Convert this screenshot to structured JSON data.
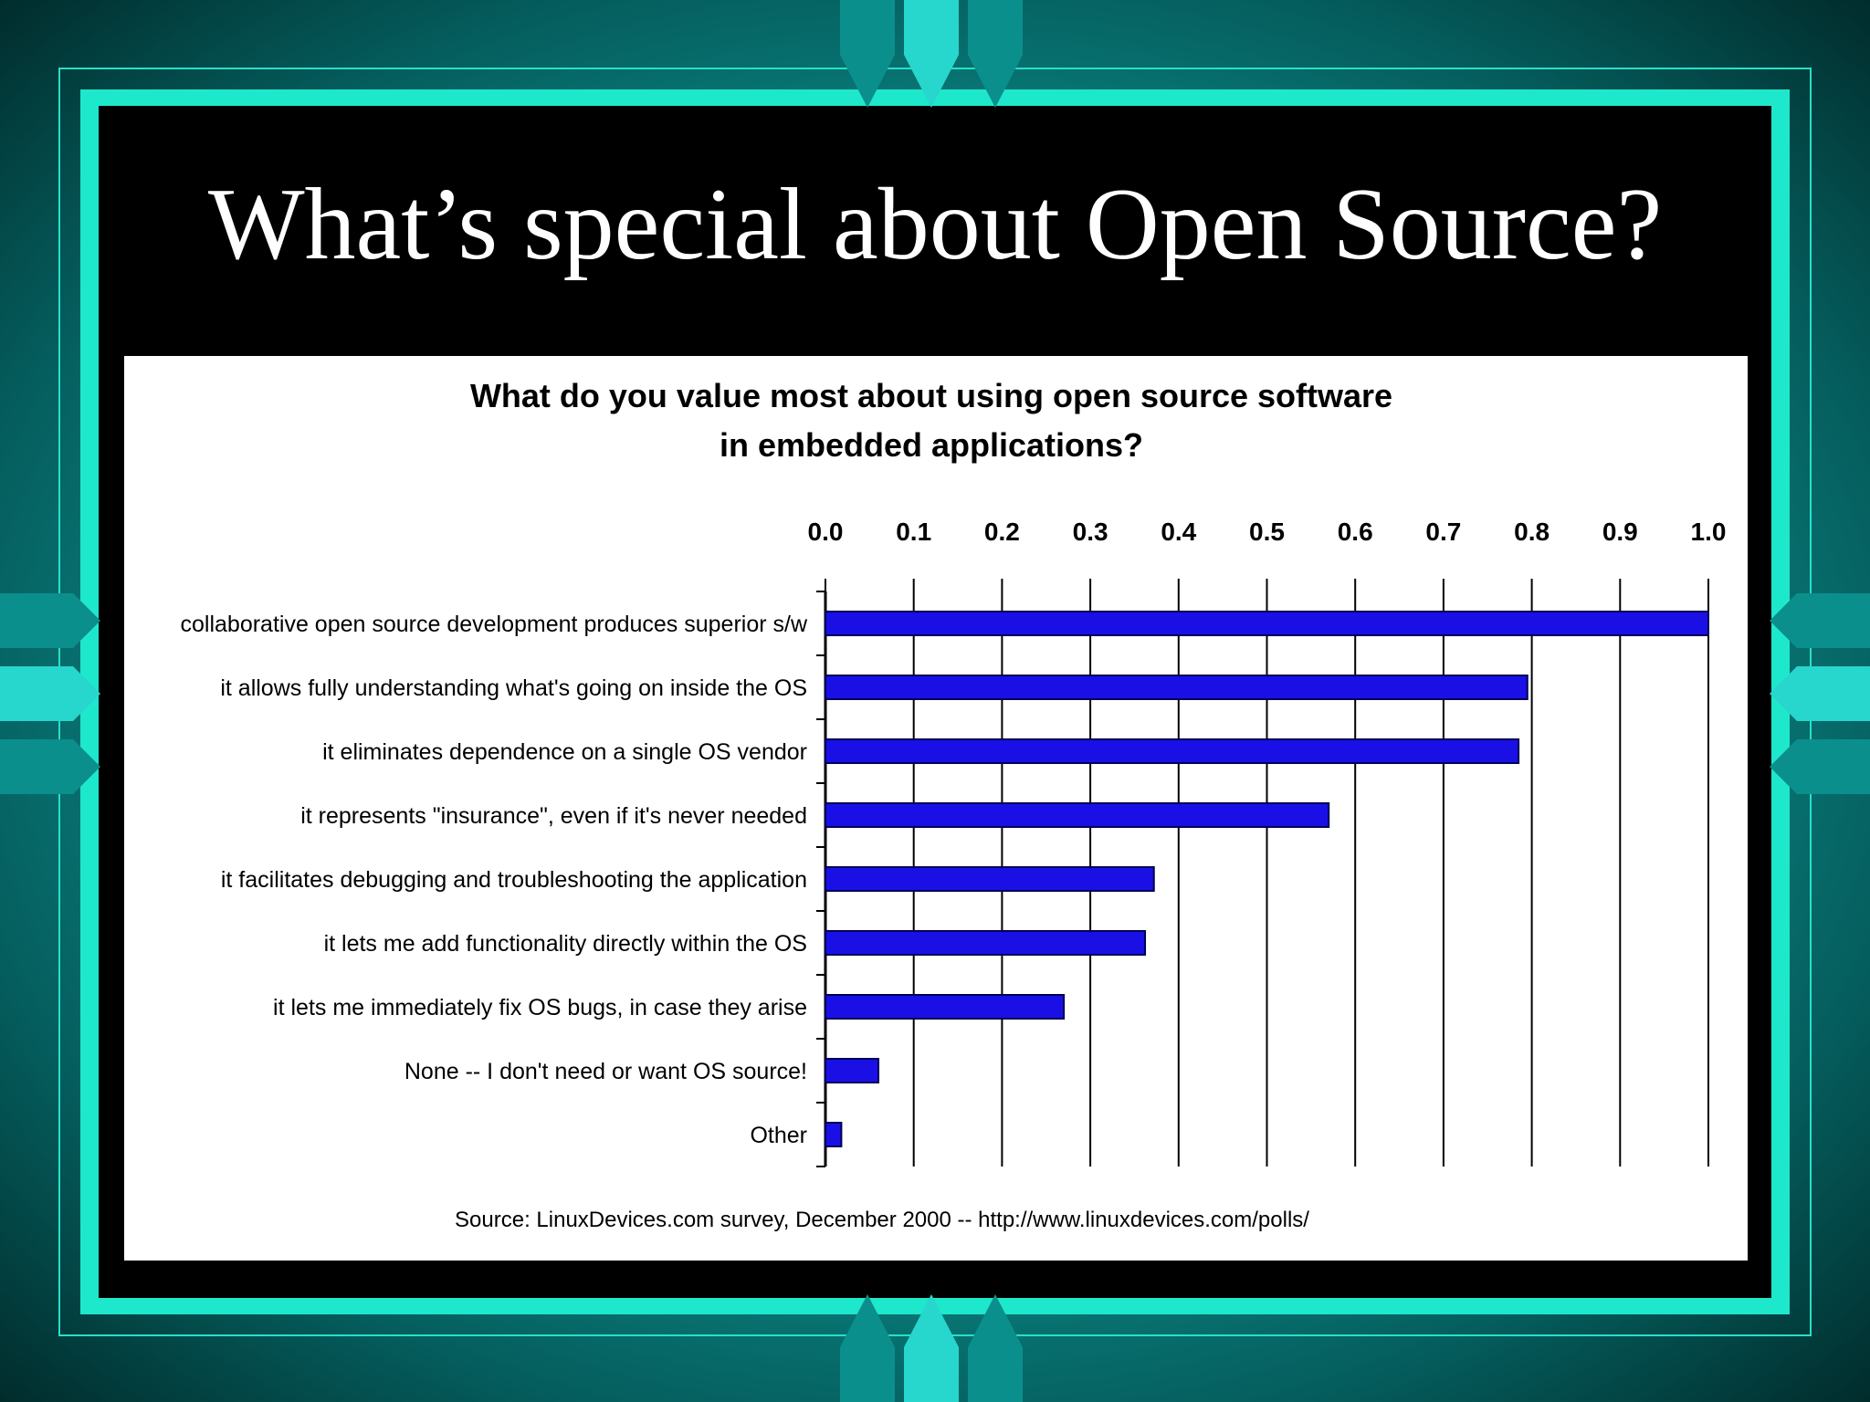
{
  "slide": {
    "title": "What’s special about Open Source?"
  },
  "colors": {
    "bar_fill": "#1a10e6",
    "bar_stroke": "#000055",
    "frame_teal": "#1ee8cc",
    "panel": "#000000"
  },
  "chart_data": {
    "type": "bar",
    "orientation": "horizontal",
    "title": [
      "What do you value most about using open source software",
      "in embedded applications?"
    ],
    "categories": [
      "collaborative open source development produces superior s/w",
      "it allows fully understanding what's going on inside the OS",
      "it eliminates dependence on a single OS vendor",
      "it represents \"insurance\", even if it's never needed",
      "it facilitates debugging and troubleshooting the application",
      "it lets me add functionality directly within the OS",
      "it lets me immediately fix OS bugs, in case they arise",
      "None -- I don't need or want OS source!",
      "Other"
    ],
    "values": [
      1.0,
      0.795,
      0.785,
      0.57,
      0.372,
      0.362,
      0.27,
      0.06,
      0.018
    ],
    "xlim": [
      0,
      1.0
    ],
    "xticks": [
      "0.0",
      "0.1",
      "0.2",
      "0.3",
      "0.4",
      "0.5",
      "0.6",
      "0.7",
      "0.8",
      "0.9",
      "1.0"
    ],
    "axis_position": "top",
    "grid": "vertical",
    "legend": "none",
    "source": "Source:  LinuxDevices.com survey, December 2000 -- http://www.linuxdevices.com/polls/"
  }
}
